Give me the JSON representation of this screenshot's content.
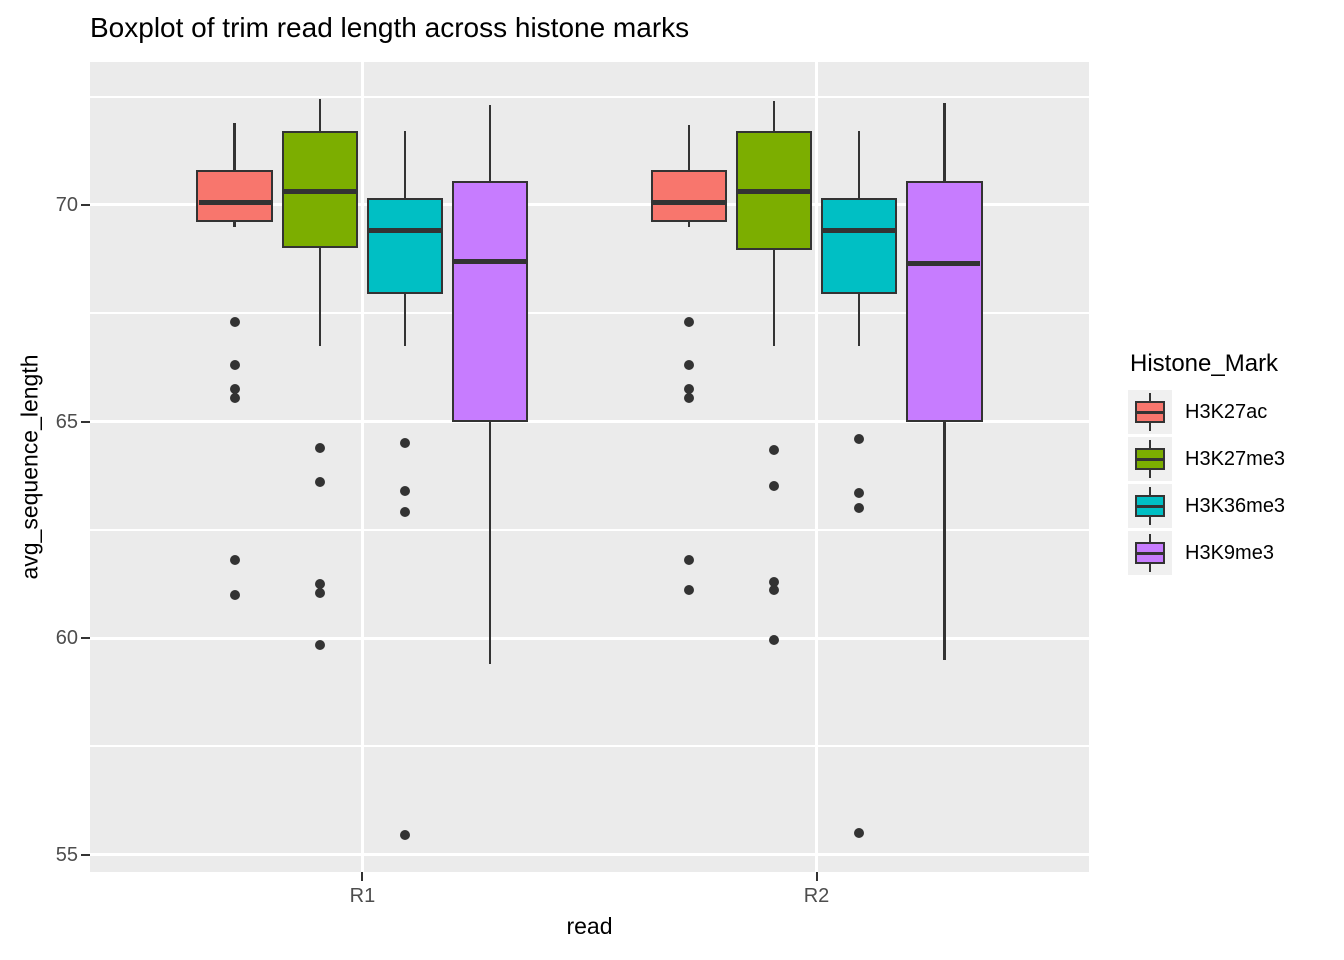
{
  "title": "Boxplot of trim read length across histone marks",
  "axes": {
    "x": {
      "label": "read",
      "tick_labels": [
        "R1",
        "R2"
      ]
    },
    "y": {
      "label": "avg_sequence_length",
      "tick_labels": [
        "70",
        "65",
        "60",
        "55"
      ]
    }
  },
  "legend": {
    "title": "Histone_Mark",
    "items": [
      {
        "label": "H3K27ac",
        "color": "#F8766D"
      },
      {
        "label": "H3K27me3",
        "color": "#7CAE00"
      },
      {
        "label": "H3K36me3",
        "color": "#00BFC4"
      },
      {
        "label": "H3K9me3",
        "color": "#C77CFF"
      }
    ]
  },
  "colors": {
    "panel_background": "#EBEBEB",
    "gridline": "#FFFFFF",
    "box_outline": "#333333",
    "axis_text": "#4D4D4D",
    "legend_key_background": "#F0F0F0"
  },
  "chart_data": {
    "type": "boxplot",
    "title": "Boxplot of trim read length across histone marks",
    "xlabel": "read",
    "ylabel": "avg_sequence_length",
    "categories": [
      "R1",
      "R2"
    ],
    "ylim": [
      54.6,
      73.3
    ],
    "yticks": [
      70,
      65,
      60,
      55
    ],
    "yticks_minor": [
      72.5,
      67.5,
      62.5,
      57.5
    ],
    "grid": true,
    "legend_position": "right",
    "legend_title": "Histone_Mark",
    "series": [
      {
        "name": "H3K27ac",
        "color": "#F8766D",
        "boxes": [
          {
            "category": "R1",
            "whisker_low": 69.5,
            "q1": 69.6,
            "median": 70.05,
            "q3": 70.8,
            "whisker_high": 71.9,
            "outliers": [
              67.3,
              66.3,
              65.75,
              65.55,
              61.8,
              61.0
            ]
          },
          {
            "category": "R2",
            "whisker_low": 69.5,
            "q1": 69.6,
            "median": 70.05,
            "q3": 70.8,
            "whisker_high": 71.85,
            "outliers": [
              67.3,
              66.3,
              65.75,
              65.55,
              61.8,
              61.1
            ]
          }
        ]
      },
      {
        "name": "H3K27me3",
        "color": "#7CAE00",
        "boxes": [
          {
            "category": "R1",
            "whisker_low": 66.75,
            "q1": 69.0,
            "median": 70.3,
            "q3": 71.7,
            "whisker_high": 72.45,
            "outliers": [
              64.4,
              63.6,
              61.25,
              61.05,
              59.85
            ]
          },
          {
            "category": "R2",
            "whisker_low": 66.75,
            "q1": 68.95,
            "median": 70.3,
            "q3": 71.7,
            "whisker_high": 72.4,
            "outliers": [
              64.35,
              63.5,
              61.3,
              61.1,
              59.95
            ]
          }
        ]
      },
      {
        "name": "H3K36me3",
        "color": "#00BFC4",
        "boxes": [
          {
            "category": "R1",
            "whisker_low": 66.75,
            "q1": 67.95,
            "median": 69.4,
            "q3": 70.15,
            "whisker_high": 71.7,
            "outliers": [
              64.5,
              63.4,
              62.9,
              55.45
            ]
          },
          {
            "category": "R2",
            "whisker_low": 66.75,
            "q1": 67.95,
            "median": 69.4,
            "q3": 70.15,
            "whisker_high": 71.7,
            "outliers": [
              64.6,
              63.35,
              63.0,
              55.5
            ]
          }
        ]
      },
      {
        "name": "H3K9me3",
        "color": "#C77CFF",
        "boxes": [
          {
            "category": "R1",
            "whisker_low": 59.4,
            "q1": 65.0,
            "median": 68.7,
            "q3": 70.55,
            "whisker_high": 72.3,
            "outliers": []
          },
          {
            "category": "R2",
            "whisker_low": 59.5,
            "q1": 65.0,
            "median": 68.65,
            "q3": 70.55,
            "whisker_high": 72.35,
            "outliers": []
          }
        ]
      }
    ]
  }
}
